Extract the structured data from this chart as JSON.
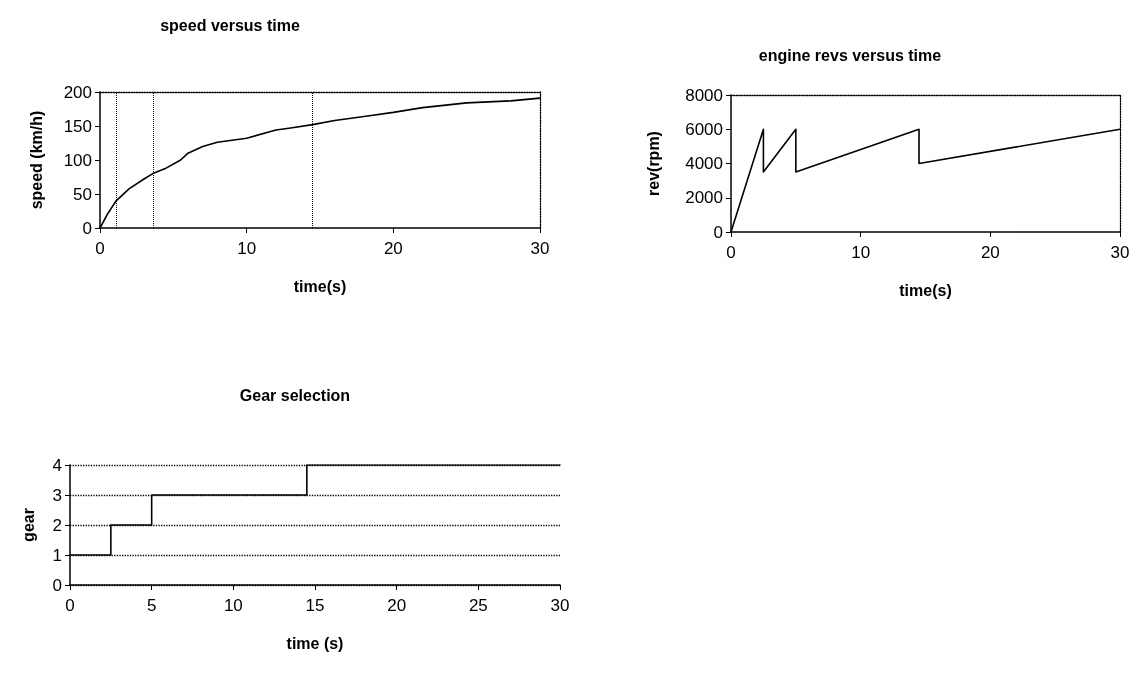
{
  "chart_data": [
    {
      "type": "line",
      "title": "speed versus time",
      "xlabel": "time(s)",
      "ylabel": "speed (km/h)",
      "xlim": [
        0,
        30
      ],
      "xticks": [
        0,
        10,
        20,
        30
      ],
      "ylim": [
        0,
        200
      ],
      "yticks": [
        0,
        50,
        100,
        150,
        200
      ],
      "grid": false,
      "marker": "none",
      "line_style": "solid",
      "series": [
        {
          "color": "#000000",
          "x": [
            0,
            0.5,
            1.1,
            2,
            3,
            3.6,
            4.5,
            5.5,
            6,
            7,
            8,
            10,
            12,
            13,
            14.5,
            16,
            18,
            20,
            22,
            25,
            28,
            30
          ],
          "values": [
            0,
            20,
            40,
            58,
            72,
            80,
            88,
            100,
            110,
            120,
            126,
            132,
            144,
            147,
            152,
            158,
            164,
            170,
            177,
            184,
            187,
            191
          ]
        }
      ],
      "ref_lines": [
        {
          "axis": "x",
          "value": 1.1,
          "color": "#000000",
          "line_style": "dotted"
        },
        {
          "axis": "x",
          "value": 3.6,
          "color": "#000000",
          "line_style": "dotted"
        },
        {
          "axis": "x",
          "value": 14.5,
          "color": "#000000",
          "line_style": "dotted"
        }
      ]
    },
    {
      "type": "line",
      "title": "engine revs versus time",
      "xlabel": "time(s)",
      "ylabel": "rev(rpm)",
      "xlim": [
        0,
        30
      ],
      "xticks": [
        0,
        10,
        20,
        30
      ],
      "ylim": [
        0,
        8000
      ],
      "yticks": [
        0,
        2000,
        4000,
        6000,
        8000
      ],
      "grid": false,
      "marker": "none",
      "line_style": "solid",
      "series": [
        {
          "color": "#000000",
          "x": [
            0,
            2.5,
            2.5,
            5,
            5,
            14.5,
            14.5,
            30
          ],
          "values": [
            0,
            6000,
            3500,
            6000,
            3500,
            6000,
            4000,
            6000
          ]
        }
      ]
    },
    {
      "type": "step",
      "title": "Gear selection",
      "xlabel": "time (s)",
      "ylabel": "gear",
      "xlim": [
        0,
        30
      ],
      "xticks": [
        0,
        5,
        10,
        15,
        20,
        25,
        30
      ],
      "ylim": [
        0,
        4
      ],
      "yticks": [
        0,
        1,
        2,
        3,
        4
      ],
      "grid": "y",
      "marker": "none",
      "line_style": "solid",
      "series": [
        {
          "color": "#000000",
          "x": [
            0,
            2.5,
            5,
            14.5,
            30
          ],
          "values": [
            1,
            2,
            3,
            4,
            4
          ]
        }
      ]
    }
  ]
}
